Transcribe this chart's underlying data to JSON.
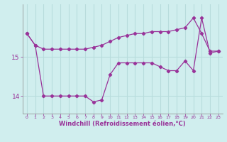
{
  "line1_x": [
    0,
    1,
    2,
    3,
    4,
    5,
    6,
    7,
    8,
    9,
    10,
    11,
    12,
    13,
    14,
    15,
    16,
    17,
    18,
    19,
    20,
    21,
    22,
    23
  ],
  "line1_y": [
    15.6,
    15.3,
    15.2,
    15.2,
    15.2,
    15.2,
    15.2,
    15.2,
    15.25,
    15.3,
    15.4,
    15.5,
    15.55,
    15.6,
    15.6,
    15.65,
    15.65,
    15.65,
    15.7,
    15.75,
    16.0,
    15.6,
    15.15,
    15.15
  ],
  "line2_x": [
    0,
    1,
    2,
    3,
    4,
    5,
    6,
    7,
    8,
    9,
    10,
    11,
    12,
    13,
    14,
    15,
    16,
    17,
    18,
    19,
    20,
    21,
    22,
    23
  ],
  "line2_y": [
    15.6,
    15.3,
    14.0,
    14.0,
    14.0,
    14.0,
    14.0,
    14.0,
    13.85,
    13.9,
    14.55,
    14.85,
    14.85,
    14.85,
    14.85,
    14.85,
    14.75,
    14.65,
    14.65,
    14.9,
    14.65,
    16.0,
    15.1,
    15.15
  ],
  "line_color": "#993399",
  "bg_color": "#d0eeee",
  "grid_color": "#b8dcdc",
  "tick_color": "#993399",
  "label_color": "#993399",
  "xlabel": "Windchill (Refroidissement éolien,°C)",
  "xlim": [
    -0.5,
    23.5
  ],
  "ylim": [
    13.55,
    16.35
  ],
  "yticks": [
    14,
    15
  ],
  "xticks": [
    0,
    1,
    2,
    3,
    4,
    5,
    6,
    7,
    8,
    9,
    10,
    11,
    12,
    13,
    14,
    15,
    16,
    17,
    18,
    19,
    20,
    21,
    22,
    23
  ]
}
